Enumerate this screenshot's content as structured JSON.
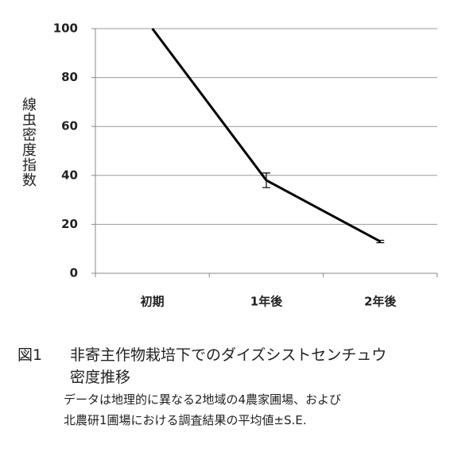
{
  "chart_data": {
    "type": "line",
    "ylabel": "線虫密度指数",
    "categories": [
      "初期",
      "1年後",
      "2年後"
    ],
    "values": [
      100,
      38,
      13
    ],
    "errors": [
      null,
      3,
      0.5
    ],
    "color": "#000000",
    "ylim": [
      0,
      100
    ],
    "yticks": [
      0,
      20,
      40,
      60,
      80,
      100
    ],
    "grid": true
  },
  "caption": {
    "figure_label": "図1",
    "title_lines": [
      "非寄主作物栽培下でのダイズシストセンチュウ",
      "密度推移"
    ],
    "note_lines": [
      "データは地理的に異なる2地域の4農家圃場、および",
      "北農研1圃場における調査結果の平均値±S.E."
    ]
  }
}
